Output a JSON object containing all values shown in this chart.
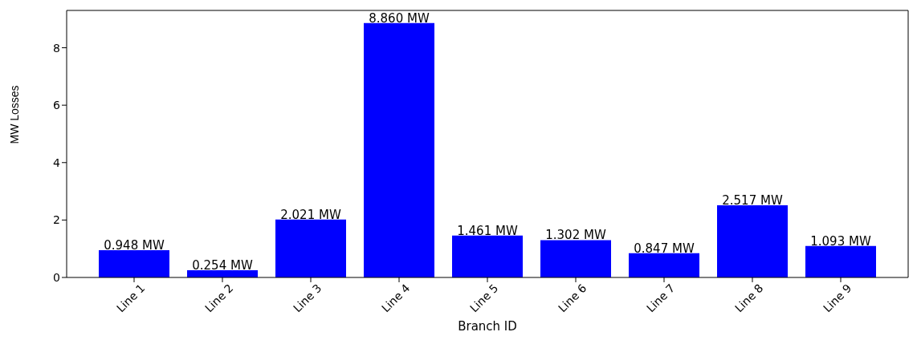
{
  "chart_data": {
    "type": "bar",
    "xlabel": "Branch ID",
    "ylabel": "MW Losses",
    "categories": [
      "Line 1",
      "Line 2",
      "Line 3",
      "Line 4",
      "Line 5",
      "Line 6",
      "Line 7",
      "Line 8",
      "Line 9"
    ],
    "values": [
      0.948,
      0.254,
      2.021,
      8.86,
      1.461,
      1.302,
      0.847,
      2.517,
      1.093
    ],
    "value_labels": [
      "0.948 MW",
      "0.254 MW",
      "2.021 MW",
      "8.860 MW",
      "1.461 MW",
      "1.302 MW",
      "0.847 MW",
      "2.517 MW",
      "1.093 MW"
    ],
    "color": "#0000ff",
    "ylim": [
      0,
      9.3
    ],
    "yticks": [
      0,
      2,
      4,
      6,
      8
    ],
    "grid": false,
    "legend": false
  }
}
